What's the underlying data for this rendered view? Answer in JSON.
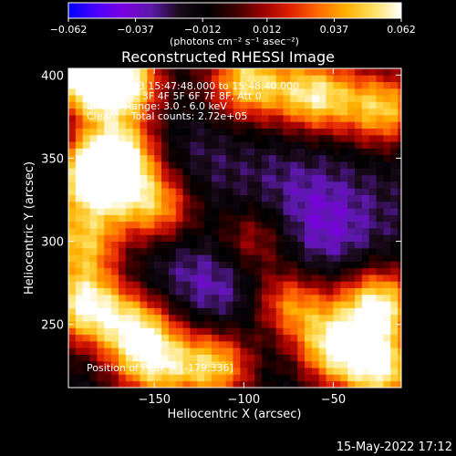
{
  "chart_data": {
    "type": "heatmap",
    "title": "Reconstructed RHESSI Image",
    "xlabel": "Heliocentric X (arcsec)",
    "ylabel": "Heliocentric Y (arcsec)",
    "xlim": [
      -198,
      -12
    ],
    "ylim": [
      212,
      404
    ],
    "x_ticks": [
      -150,
      -100,
      -50
    ],
    "x_tick_labels": [
      "−150",
      "−100",
      "−50"
    ],
    "y_ticks": [
      250,
      300,
      350,
      400
    ],
    "y_tick_labels": [
      "250",
      "300",
      "350",
      "400"
    ],
    "colorbar": {
      "min": -0.062,
      "max": 0.062,
      "ticks": [
        -0.062,
        -0.037,
        -0.012,
        0.012,
        0.037,
        0.062
      ],
      "tick_labels": [
        "−0.062",
        "−0.037",
        "−0.012",
        "0.012",
        "0.037",
        "0.062"
      ],
      "units_label": "(photons cm⁻² s⁻¹ asec⁻²)",
      "colors": [
        "#0000ff",
        "#4b00ff",
        "#7a00e0",
        "#5a1aa8",
        "#1a0a1a",
        "#000000",
        "#3a0000",
        "#9a0000",
        "#e02000",
        "#ff6a00",
        "#ffb000",
        "#ffe060",
        "#ffffff"
      ]
    },
    "annotations": [
      "20-Jul-2013 15:47:48.000 to 15:48:40.000",
      "Detectors: 3F 4F 5F 6F 7F 8F, Att 0",
      "Energy Range: 3.0 - 6.0 keV",
      "Clean     Total counts: 2.72e+05"
    ],
    "peak_label": "Position of Peak = [-179,336]",
    "peak_position": [
      -179,
      336
    ],
    "hotspots": [
      {
        "x": -188,
        "y": 400,
        "value": 0.06
      },
      {
        "x": -168,
        "y": 395,
        "value": 0.055
      },
      {
        "x": -182,
        "y": 338,
        "value": 0.062
      },
      {
        "x": -170,
        "y": 352,
        "value": 0.05
      },
      {
        "x": -148,
        "y": 322,
        "value": 0.045
      },
      {
        "x": -98,
        "y": 396,
        "value": 0.05
      },
      {
        "x": -60,
        "y": 388,
        "value": 0.052
      },
      {
        "x": -22,
        "y": 380,
        "value": 0.045
      },
      {
        "x": -190,
        "y": 262,
        "value": 0.055
      },
      {
        "x": -160,
        "y": 248,
        "value": 0.045
      },
      {
        "x": -75,
        "y": 262,
        "value": 0.045
      },
      {
        "x": -25,
        "y": 262,
        "value": 0.058
      },
      {
        "x": -50,
        "y": 236,
        "value": 0.052
      },
      {
        "x": -22,
        "y": 222,
        "value": 0.05
      },
      {
        "x": -115,
        "y": 226,
        "value": 0.048
      },
      {
        "x": -150,
        "y": 225,
        "value": 0.04
      },
      {
        "x": -95,
        "y": 300,
        "value": 0.025
      },
      {
        "x": -190,
        "y": 300,
        "value": 0.04
      }
    ],
    "coldspots": [
      {
        "x": -135,
        "y": 340,
        "value": -0.03
      },
      {
        "x": -105,
        "y": 280,
        "value": -0.035
      },
      {
        "x": -70,
        "y": 330,
        "value": -0.028
      },
      {
        "x": -55,
        "y": 300,
        "value": -0.032
      },
      {
        "x": -140,
        "y": 275,
        "value": -0.025
      },
      {
        "x": -85,
        "y": 245,
        "value": -0.03
      },
      {
        "x": -30,
        "y": 320,
        "value": -0.02
      }
    ]
  },
  "footer": {
    "timestamp": "15-May-2022 17:12"
  }
}
